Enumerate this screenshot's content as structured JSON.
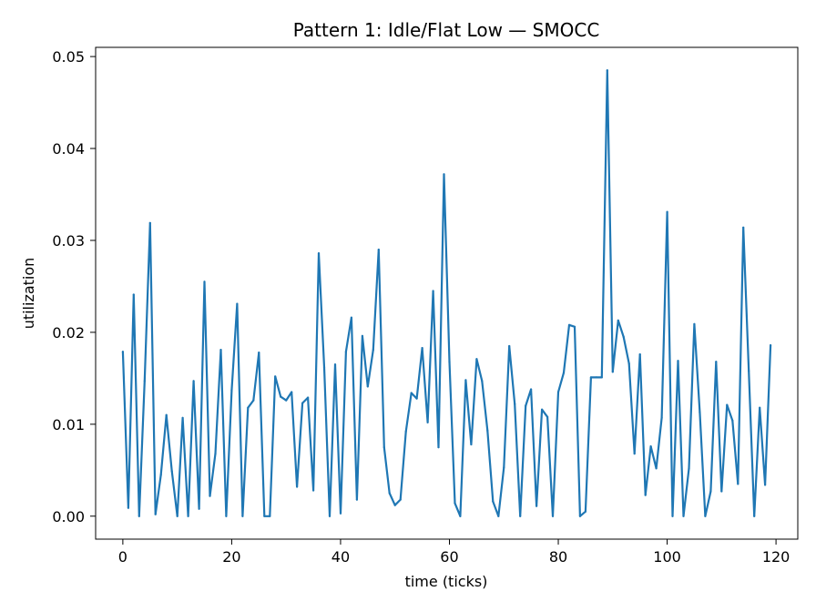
{
  "chart_data": {
    "type": "line",
    "title": "Pattern 1: Idle/Flat Low — SMOCC",
    "xlabel": "time (ticks)",
    "ylabel": "utilization",
    "xlim": [
      -5,
      124
    ],
    "ylim": [
      -0.0025,
      0.051
    ],
    "xticks": [
      0,
      20,
      40,
      60,
      80,
      100,
      120
    ],
    "xtick_labels": [
      "0",
      "20",
      "40",
      "60",
      "80",
      "100",
      "120"
    ],
    "yticks": [
      0.0,
      0.01,
      0.02,
      0.03,
      0.04,
      0.05
    ],
    "ytick_labels": [
      "0.00",
      "0.01",
      "0.02",
      "0.03",
      "0.04",
      "0.05"
    ],
    "grid": false,
    "line_color": "#1f77b4",
    "series": [
      {
        "x": [
          0,
          1,
          2,
          3,
          4,
          5,
          6,
          7,
          8,
          9,
          10,
          11,
          12,
          13,
          14,
          15,
          16,
          17,
          18,
          19,
          20,
          21,
          22,
          23,
          24,
          25,
          26,
          27,
          28,
          29,
          30,
          31,
          32,
          33,
          34,
          35,
          36,
          37,
          38,
          39,
          40,
          41,
          42,
          43,
          44,
          45,
          46,
          47,
          48,
          49,
          50,
          51,
          52,
          53,
          54,
          55,
          56,
          57,
          58,
          59,
          60,
          61,
          62,
          63,
          64,
          65,
          66,
          67,
          68,
          69,
          70,
          71,
          72,
          73,
          74,
          75,
          76,
          77,
          78,
          79,
          80,
          81,
          82,
          83,
          84,
          85,
          86,
          87,
          88,
          89,
          90,
          91,
          92,
          93,
          94,
          95,
          96,
          97,
          98,
          99,
          100,
          101,
          102,
          103,
          104,
          105,
          106,
          107,
          108,
          109,
          110,
          111,
          112,
          113,
          114,
          115,
          116,
          117,
          118,
          119
        ],
        "values": [
          0.0179,
          0.0009,
          0.0241,
          0.0,
          0.0147,
          0.0319,
          0.0002,
          0.0045,
          0.011,
          0.0049,
          0.0,
          0.0107,
          0.0,
          0.0147,
          0.0008,
          0.0255,
          0.0022,
          0.0068,
          0.0181,
          0.0,
          0.0137,
          0.0231,
          0.0,
          0.0118,
          0.0126,
          0.0178,
          0.0,
          0.0,
          0.0152,
          0.013,
          0.0126,
          0.0135,
          0.0032,
          0.0123,
          0.0129,
          0.0028,
          0.0286,
          0.0162,
          0.0,
          0.0165,
          0.0003,
          0.0179,
          0.0216,
          0.0018,
          0.0196,
          0.0141,
          0.0181,
          0.029,
          0.0075,
          0.0025,
          0.0012,
          0.0018,
          0.0092,
          0.0134,
          0.0128,
          0.0183,
          0.0102,
          0.0245,
          0.0075,
          0.0372,
          0.0168,
          0.0014,
          0.0,
          0.0148,
          0.0078,
          0.0171,
          0.0147,
          0.0093,
          0.0016,
          0.0,
          0.0053,
          0.0185,
          0.0122,
          0.0,
          0.012,
          0.0138,
          0.0011,
          0.0116,
          0.0108,
          0.0,
          0.0135,
          0.0156,
          0.0208,
          0.0206,
          0.0,
          0.0005,
          0.0151,
          0.0151,
          0.0151,
          0.0485,
          0.0157,
          0.0213,
          0.0195,
          0.0166,
          0.0068,
          0.0176,
          0.0023,
          0.0076,
          0.0052,
          0.0107,
          0.0331,
          0.0,
          0.0169,
          0.0,
          0.0052,
          0.0209,
          0.0113,
          0.0,
          0.0027,
          0.0168,
          0.0027,
          0.0121,
          0.0104,
          0.0035,
          0.0314,
          0.0158,
          0.0,
          0.0118,
          0.0034,
          0.0186
        ]
      }
    ]
  }
}
